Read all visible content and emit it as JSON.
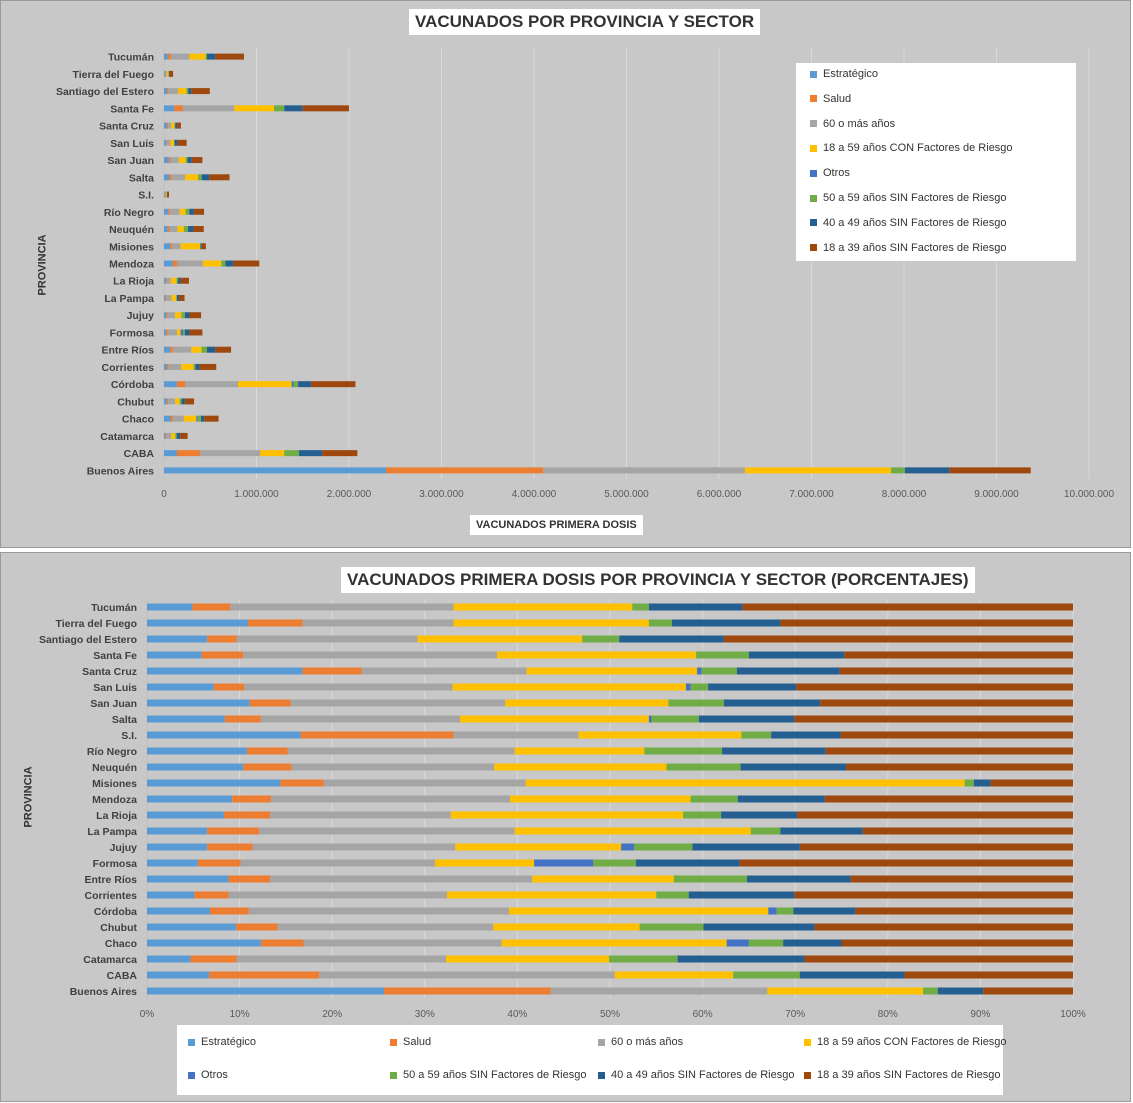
{
  "chart_data": [
    {
      "type": "bar",
      "orientation": "horizontal",
      "stacked": true,
      "title": "VACUNADOS POR PROVINCIA Y SECTOR",
      "xlabel": "VACUNADOS PRIMERA  DOSIS",
      "ylabel": "PROVINCIA",
      "xlim": [
        0,
        10000000
      ],
      "xticks": [
        "0",
        "1.000.000",
        "2.000.000",
        "3.000.000",
        "4.000.000",
        "5.000.000",
        "6.000.000",
        "7.000.000",
        "8.000.000",
        "9.000.000",
        "10.000.000"
      ],
      "legend_position": "top-right",
      "grid": true,
      "categories": [
        "Buenos Aires",
        "CABA",
        "Catamarca",
        "Chaco",
        "Chubut",
        "Córdoba",
        "Corrientes",
        "Entre Ríos",
        "Formosa",
        "Jujuy",
        "La Pampa",
        "La Rioja",
        "Mendoza",
        "Misiones",
        "Neuquén",
        "Río Negro",
        "S.I.",
        "Salta",
        "San Juan",
        "San Luis",
        "Santa Cruz",
        "Santa Fe",
        "Santiago del Estero",
        "Tierra del Fuego",
        "Tucumán"
      ],
      "series": [
        {
          "name": "Estratégico",
          "values": [
            2400000,
            140000,
            11000,
            70000,
            30000,
            140000,
            30000,
            65000,
            20000,
            25000,
            13000,
            18000,
            95000,
            65000,
            40000,
            45000,
            8000,
            55000,
            50000,
            20000,
            32000,
            110000,
            32000,
            10000,
            40000
          ]
        },
        {
          "name": "Salud",
          "values": [
            1700000,
            250000,
            13000,
            25000,
            15000,
            90000,
            20000,
            30000,
            20000,
            15000,
            12000,
            12000,
            45000,
            20000,
            20000,
            18000,
            8000,
            25000,
            15000,
            10000,
            12000,
            90000,
            15000,
            5000,
            35000
          ]
        },
        {
          "name": "60 o más años",
          "values": [
            2180000,
            650000,
            55000,
            120000,
            75000,
            570000,
            135000,
            200000,
            100000,
            80000,
            56000,
            45000,
            280000,
            95000,
            85000,
            105000,
            6000,
            150000,
            95000,
            40000,
            35000,
            560000,
            105000,
            15000,
            200000
          ]
        },
        {
          "name": "18 a 59 años CON Factores de Riesgo",
          "values": [
            1580000,
            260000,
            43000,
            135000,
            50000,
            580000,
            135000,
            110000,
            40000,
            70000,
            52000,
            60000,
            200000,
            210000,
            70000,
            65000,
            8000,
            140000,
            75000,
            38000,
            35000,
            430000,
            90000,
            20000,
            175000
          ]
        },
        {
          "name": "Otros",
          "values": [
            0,
            0,
            0,
            15000,
            0,
            20000,
            0,
            0,
            25000,
            6000,
            0,
            0,
            0,
            0,
            0,
            0,
            0,
            3000,
            0,
            1000,
            1000,
            0,
            0,
            0,
            0
          ]
        },
        {
          "name": "50 a 59 años SIN Factores de Riesgo",
          "values": [
            150000,
            160000,
            15000,
            35000,
            20000,
            50000,
            20000,
            60000,
            20000,
            30000,
            6000,
            15000,
            45000,
            5000,
            45000,
            40000,
            2000,
            35000,
            20000,
            6000,
            7000,
            110000,
            20000,
            3000,
            15000
          ]
        },
        {
          "name": "40 a 49 años SIN Factores de Riesgo",
          "values": [
            480000,
            250000,
            38000,
            35000,
            35000,
            140000,
            45000,
            90000,
            50000,
            50000,
            23000,
            30000,
            85000,
            13000,
            60000,
            50000,
            4000,
            80000,
            45000,
            30000,
            19000,
            200000,
            33000,
            8000,
            90000
          ]
        },
        {
          "name": "18 a 39 años SIN Factores de Riesgo",
          "values": [
            880000,
            380000,
            80000,
            155000,
            100000,
            480000,
            180000,
            170000,
            140000,
            125000,
            60000,
            90000,
            280000,
            45000,
            110000,
            110000,
            18000,
            220000,
            115000,
            100000,
            42000,
            500000,
            200000,
            37000,
            310000
          ]
        }
      ]
    },
    {
      "type": "bar",
      "orientation": "horizontal",
      "stacked": true,
      "percent": true,
      "title": "VACUNADOS PRIMERA DOSIS POR PROVINCIA Y SECTOR (PORCENTAJES)",
      "ylabel": "PROVINCIA",
      "xlim": [
        0,
        100
      ],
      "xticks": [
        "0%",
        "10%",
        "20%",
        "30%",
        "40%",
        "50%",
        "60%",
        "70%",
        "80%",
        "90%",
        "100%"
      ],
      "legend_position": "bottom",
      "grid": true,
      "categories": [
        "Buenos Aires",
        "CABA",
        "Catamarca",
        "Chaco",
        "Chubut",
        "Córdoba",
        "Corrientes",
        "Entre Ríos",
        "Formosa",
        "Jujuy",
        "La Pampa",
        "La Rioja",
        "Mendoza",
        "Misiones",
        "Neuquén",
        "Río Negro",
        "S.I.",
        "Salta",
        "San Juan",
        "San Luis",
        "Santa Cruz",
        "Santa Fe",
        "Santiago del Estero",
        "Tierra del Fuego",
        "Tucumán"
      ],
      "cumulative_boundaries": [
        [
          25.6,
          43.6,
          67.0,
          83.8,
          83.8,
          85.4,
          90.3,
          100
        ],
        [
          6.7,
          18.6,
          50.5,
          63.3,
          63.3,
          70.5,
          81.8,
          100
        ],
        [
          4.7,
          9.7,
          32.3,
          49.9,
          49.9,
          57.3,
          71.0,
          100
        ],
        [
          12.3,
          16.9,
          38.3,
          62.6,
          65.0,
          68.7,
          75.0,
          100
        ],
        [
          9.6,
          14.1,
          37.4,
          53.2,
          53.2,
          60.1,
          72.1,
          100
        ],
        [
          6.8,
          11.0,
          39.1,
          67.1,
          68.0,
          69.8,
          76.5,
          100
        ],
        [
          5.1,
          8.8,
          32.4,
          55.0,
          55.0,
          58.5,
          69.9,
          100
        ],
        [
          8.8,
          13.3,
          41.6,
          56.9,
          56.9,
          64.8,
          76.0,
          100
        ],
        [
          5.5,
          10.1,
          31.1,
          41.8,
          48.2,
          52.8,
          64.0,
          100
        ],
        [
          6.5,
          11.4,
          33.3,
          51.2,
          52.6,
          58.9,
          70.5,
          100
        ],
        [
          6.5,
          12.1,
          39.7,
          65.2,
          65.2,
          68.4,
          77.3,
          100
        ],
        [
          8.3,
          13.3,
          32.8,
          57.9,
          57.9,
          62.0,
          70.2,
          100
        ],
        [
          9.2,
          13.4,
          39.2,
          58.7,
          58.7,
          63.8,
          73.2,
          100
        ],
        [
          14.4,
          19.1,
          40.9,
          88.3,
          88.3,
          89.3,
          91.1,
          100
        ],
        [
          10.4,
          15.6,
          37.5,
          56.1,
          56.1,
          64.1,
          75.5,
          100
        ],
        [
          10.8,
          15.2,
          39.7,
          53.7,
          53.7,
          62.1,
          73.3,
          100
        ],
        [
          16.6,
          33.1,
          46.6,
          64.2,
          64.2,
          67.4,
          74.9,
          100
        ],
        [
          8.4,
          12.3,
          33.8,
          54.2,
          54.5,
          59.6,
          69.9,
          100
        ],
        [
          11.1,
          15.5,
          38.7,
          56.3,
          56.3,
          62.3,
          72.7,
          100
        ],
        [
          7.2,
          10.5,
          33.0,
          58.2,
          58.7,
          60.6,
          70.1,
          100
        ],
        [
          16.8,
          23.2,
          41.0,
          59.4,
          59.9,
          63.7,
          74.8,
          100
        ],
        [
          5.9,
          10.4,
          37.8,
          59.3,
          59.3,
          65.0,
          75.3,
          100
        ],
        [
          6.5,
          9.7,
          29.2,
          47.0,
          47.0,
          51.0,
          62.3,
          100
        ],
        [
          10.9,
          16.8,
          33.1,
          54.2,
          54.2,
          56.7,
          68.4,
          100
        ],
        [
          4.9,
          9.0,
          33.1,
          52.4,
          52.4,
          54.2,
          64.3,
          100
        ]
      ],
      "series_names": [
        "Estratégico",
        "Salud",
        "60 o más años",
        "18 a 59 años CON Factores de Riesgo",
        "Otros",
        "50 a 59 años SIN Factores de Riesgo",
        "40 a 49 años SIN Factores de Riesgo",
        "18 a 39 años SIN Factores de Riesgo"
      ]
    }
  ],
  "colors": [
    "#5b9bd5",
    "#ed7d31",
    "#a5a5a5",
    "#ffc000",
    "#4472c4",
    "#70ad47",
    "#255e91",
    "#9e480e"
  ]
}
